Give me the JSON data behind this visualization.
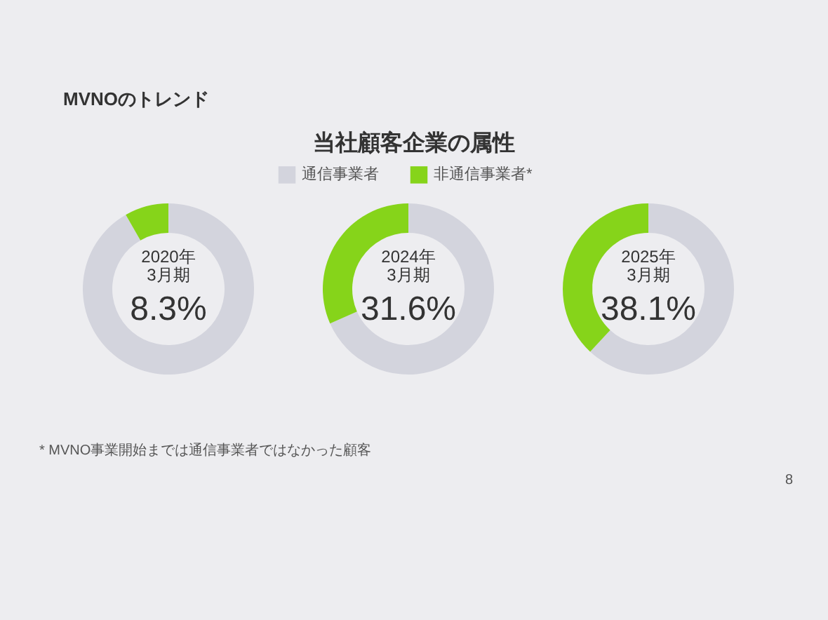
{
  "chart_data": [
    {
      "type": "other",
      "title": "MVNOのトレンド",
      "subtitle": "当社顧客企業の属性",
      "annotations": [
        "* MVNO事業開始までは通信事業者ではなかった顧客",
        "8"
      ]
    },
    {
      "type": "donut",
      "categories": [
        null,
        null
      ],
      "values": [
        91.7,
        8.3
      ],
      "colors": [
        "#d3d4dd",
        "#86d41a"
      ],
      "annotations": [
        "2020年",
        "3月期",
        "8.3%"
      ],
      "legend": false
    },
    {
      "type": "donut",
      "categories": [
        "通信事業者",
        "非通信事業者*"
      ],
      "values": [
        68.4,
        31.6
      ],
      "colors": [
        "#d3d4dd",
        "#86d41a"
      ],
      "annotations": [
        "2024年",
        "3月期",
        "31.6%"
      ],
      "legend": "top"
    },
    {
      "type": "donut",
      "categories": [
        null,
        null
      ],
      "values": [
        61.9,
        38.1
      ],
      "colors": [
        "#d3d4dd",
        "#86d41a"
      ],
      "annotations": [
        "2025年",
        "3月期",
        "38.1%"
      ],
      "legend": false
    }
  ]
}
